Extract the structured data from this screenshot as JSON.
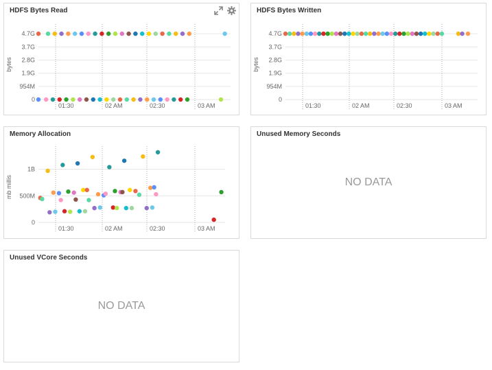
{
  "panels": {
    "hdfs_read": {
      "title": "HDFS Bytes Read",
      "tools": [
        "expand-icon",
        "gear-icon"
      ]
    },
    "hdfs_written": {
      "title": "HDFS Bytes Written"
    },
    "memory_allocation": {
      "title": "Memory Allocation"
    },
    "unused_memory": {
      "title": "Unused Memory Seconds",
      "message": "NO DATA"
    },
    "unused_vcore": {
      "title": "Unused VCore Seconds",
      "message": "NO DATA"
    }
  },
  "colors": {
    "grid": "#e6e6e6",
    "dotted": "#aaaaaa",
    "axis_text": "#666666",
    "palette": [
      "#e8684a",
      "#5ad8a6",
      "#f6bd16",
      "#9270ca",
      "#ff9d4d",
      "#6dc8ec",
      "#5b8ff9",
      "#ff99c3",
      "#269a99",
      "#d62728",
      "#2ca02c",
      "#b0e34d",
      "#e377c2",
      "#8c564b",
      "#1f77b4",
      "#17becf",
      "#ffd700",
      "#a0d6a0"
    ]
  },
  "chart_data": [
    {
      "id": "hdfs_read",
      "type": "scatter",
      "title": "HDFS Bytes Read",
      "ylabel": "bytes",
      "y_ticks": [
        "0",
        "954M",
        "1.9G",
        "2.8G",
        "3.7G",
        "4.7G"
      ],
      "x_ticks": [
        "01:30",
        "02 AM",
        "02:30",
        "03 AM"
      ],
      "ylim": [
        0,
        5
      ],
      "xlim": [
        0,
        100
      ],
      "grid": true,
      "points": [
        [
          0,
          4.7
        ],
        [
          5,
          4.7
        ],
        [
          8.5,
          4.7
        ],
        [
          12,
          4.7
        ],
        [
          15.5,
          4.7
        ],
        [
          19,
          4.7
        ],
        [
          22.5,
          4.7
        ],
        [
          26,
          4.7
        ],
        [
          29.5,
          4.7
        ],
        [
          33,
          4.7
        ],
        [
          36.5,
          4.7
        ],
        [
          40,
          4.7
        ],
        [
          43.5,
          4.7
        ],
        [
          47,
          4.7
        ],
        [
          50.5,
          4.7
        ],
        [
          54,
          4.7
        ],
        [
          57.5,
          4.7
        ],
        [
          61,
          4.7
        ],
        [
          64.5,
          4.7
        ],
        [
          68,
          4.7
        ],
        [
          71.5,
          4.7
        ],
        [
          75,
          4.7
        ],
        [
          78.5,
          4.7
        ],
        [
          97,
          4.7
        ],
        [
          0,
          0
        ],
        [
          4,
          0
        ],
        [
          7.5,
          0
        ],
        [
          11,
          0
        ],
        [
          14.5,
          0
        ],
        [
          18,
          0
        ],
        [
          21.5,
          0
        ],
        [
          25,
          0
        ],
        [
          28.5,
          0
        ],
        [
          32,
          0
        ],
        [
          35.5,
          0
        ],
        [
          39,
          0
        ],
        [
          42.5,
          0
        ],
        [
          46,
          0
        ],
        [
          49.5,
          0
        ],
        [
          53,
          0
        ],
        [
          56.5,
          0
        ],
        [
          60,
          0
        ],
        [
          63.5,
          0
        ],
        [
          67,
          0
        ],
        [
          70.5,
          0
        ],
        [
          74,
          0
        ],
        [
          77.5,
          0
        ],
        [
          95,
          0
        ]
      ]
    },
    {
      "id": "hdfs_written",
      "type": "scatter",
      "title": "HDFS Bytes Written",
      "ylabel": "bytes",
      "y_ticks": [
        "0",
        "954M",
        "1.9G",
        "2.8G",
        "3.7G",
        "4.7G"
      ],
      "x_ticks": [
        "01:30",
        "02 AM",
        "02:30",
        "03 AM"
      ],
      "ylim": [
        0,
        5
      ],
      "xlim": [
        0,
        100
      ],
      "grid": true,
      "points": [
        [
          0,
          4.7
        ],
        [
          2.2,
          4.7
        ],
        [
          4.4,
          4.7
        ],
        [
          6.6,
          4.7
        ],
        [
          8.8,
          4.7
        ],
        [
          11,
          4.7
        ],
        [
          13.2,
          4.7
        ],
        [
          15.4,
          4.7
        ],
        [
          17.6,
          4.7
        ],
        [
          19.8,
          4.7
        ],
        [
          22,
          4.7
        ],
        [
          24.2,
          4.7
        ],
        [
          26.4,
          4.7
        ],
        [
          28.6,
          4.7
        ],
        [
          30.8,
          4.7
        ],
        [
          33,
          4.7
        ],
        [
          35.2,
          4.7
        ],
        [
          37.4,
          4.7
        ],
        [
          39.6,
          4.7
        ],
        [
          41.8,
          4.7
        ],
        [
          44,
          4.7
        ],
        [
          46.2,
          4.7
        ],
        [
          48.4,
          4.7
        ],
        [
          50.6,
          4.7
        ],
        [
          52.8,
          4.7
        ],
        [
          55,
          4.7
        ],
        [
          57.2,
          4.7
        ],
        [
          59.4,
          4.7
        ],
        [
          61.6,
          4.7
        ],
        [
          63.8,
          4.7
        ],
        [
          66,
          4.7
        ],
        [
          68.2,
          4.7
        ],
        [
          70.4,
          4.7
        ],
        [
          72.6,
          4.7
        ],
        [
          74.8,
          4.7
        ],
        [
          77,
          4.7
        ],
        [
          79.2,
          4.7
        ],
        [
          81.4,
          4.7
        ],
        [
          90,
          4.7
        ],
        [
          92,
          4.7
        ],
        [
          95,
          4.7
        ]
      ]
    },
    {
      "id": "memory_allocation",
      "type": "scatter",
      "title": "Memory Allocation",
      "ylabel": "mb millis",
      "y_ticks": [
        "0",
        "500M",
        "1B"
      ],
      "y_tick_values": [
        0,
        500,
        1000
      ],
      "x_ticks": [
        "01:30",
        "02 AM",
        "02:30",
        "03 AM"
      ],
      "ylim": [
        0,
        1330
      ],
      "xlim": [
        0,
        100
      ],
      "grid": true,
      "points": [
        [
          1,
          460
        ],
        [
          2,
          440
        ],
        [
          5,
          970
        ],
        [
          6,
          190
        ],
        [
          8,
          560
        ],
        [
          9,
          200
        ],
        [
          11,
          550
        ],
        [
          12,
          420
        ],
        [
          13,
          1080
        ],
        [
          14,
          210
        ],
        [
          16,
          580
        ],
        [
          17,
          200
        ],
        [
          19,
          560
        ],
        [
          20,
          430
        ],
        [
          21,
          1110
        ],
        [
          22,
          210
        ],
        [
          24,
          610
        ],
        [
          25,
          210
        ],
        [
          26,
          610
        ],
        [
          27,
          420
        ],
        [
          29,
          1230
        ],
        [
          30,
          270
        ],
        [
          32,
          530
        ],
        [
          33,
          280
        ],
        [
          35,
          510
        ],
        [
          36,
          540
        ],
        [
          38,
          1040
        ],
        [
          40,
          280
        ],
        [
          41,
          590
        ],
        [
          42,
          270
        ],
        [
          44,
          570
        ],
        [
          45,
          570
        ],
        [
          46,
          1160
        ],
        [
          47,
          270
        ],
        [
          49,
          610
        ],
        [
          50,
          270
        ],
        [
          52,
          590
        ],
        [
          54,
          520
        ],
        [
          56,
          1240
        ],
        [
          58,
          270
        ],
        [
          60,
          650
        ],
        [
          61,
          280
        ],
        [
          62,
          660
        ],
        [
          63,
          530
        ],
        [
          64,
          1320
        ],
        [
          94,
          50
        ],
        [
          98,
          570
        ]
      ]
    }
  ]
}
